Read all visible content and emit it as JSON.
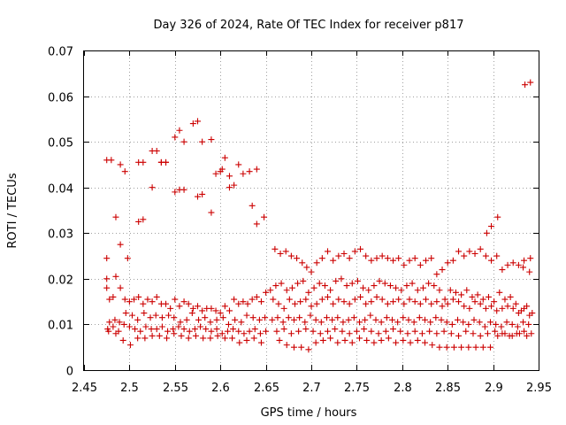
{
  "chart_data": {
    "type": "scatter",
    "title": "Day 326 of 2024, Rate Of TEC Index for receiver p817",
    "xlabel": "GPS time / hours",
    "ylabel": "ROTI / TECUs",
    "xlim": [
      2.45,
      2.95
    ],
    "ylim": [
      0,
      0.07
    ],
    "xticks": [
      "2.45",
      "2.5",
      "2.55",
      "2.6",
      "2.65",
      "2.7",
      "2.75",
      "2.8",
      "2.85",
      "2.9",
      "2.95"
    ],
    "yticks": [
      "0",
      "0.01",
      "0.02",
      "0.03",
      "0.04",
      "0.05",
      "0.06",
      "0.07"
    ],
    "grid": true,
    "marker": "+",
    "color": "#cc0000",
    "series": [
      {
        "name": "p817",
        "x": [
          2.475,
          2.475,
          2.48,
          2.485,
          2.49,
          2.495,
          2.51,
          2.515,
          2.525,
          2.53,
          2.535,
          2.54,
          2.55,
          2.555,
          2.56,
          2.57,
          2.575,
          2.58,
          2.59,
          2.595,
          2.6,
          2.602,
          2.61,
          2.62,
          2.625,
          2.632,
          2.64,
          2.475,
          2.485,
          2.49,
          2.498,
          2.51,
          2.515,
          2.525,
          2.535,
          2.54,
          2.55,
          2.555,
          2.56,
          2.575,
          2.58,
          2.59,
          2.605,
          2.61,
          2.615,
          2.635,
          2.64,
          2.648,
          2.475,
          2.478,
          2.482,
          2.49,
          2.495,
          2.5,
          2.505,
          2.51,
          2.515,
          2.52,
          2.525,
          2.53,
          2.535,
          2.54,
          2.545,
          2.55,
          2.555,
          2.56,
          2.565,
          2.57,
          2.575,
          2.58,
          2.585,
          2.59,
          2.595,
          2.6,
          2.605,
          2.61,
          2.615,
          2.62,
          2.625,
          2.63,
          2.635,
          2.64,
          2.645,
          2.65,
          2.478,
          2.484,
          2.489,
          2.496,
          2.503,
          2.509,
          2.516,
          2.523,
          2.529,
          2.536,
          2.543,
          2.549,
          2.556,
          2.563,
          2.569,
          2.576,
          2.583,
          2.589,
          2.596,
          2.603,
          2.609,
          2.616,
          2.623,
          2.629,
          2.636,
          2.643,
          2.649,
          2.476,
          2.482,
          2.488,
          2.494,
          2.5,
          2.506,
          2.512,
          2.518,
          2.524,
          2.53,
          2.536,
          2.542,
          2.548,
          2.554,
          2.56,
          2.566,
          2.572,
          2.578,
          2.584,
          2.59,
          2.596,
          2.602,
          2.608,
          2.614,
          2.62,
          2.626,
          2.632,
          2.638,
          2.644,
          2.65,
          2.477,
          2.485,
          2.493,
          2.501,
          2.509,
          2.517,
          2.525,
          2.533,
          2.541,
          2.549,
          2.557,
          2.565,
          2.573,
          2.581,
          2.589,
          2.597,
          2.605,
          2.613,
          2.621,
          2.629,
          2.637,
          2.645,
          2.66,
          2.666,
          2.672,
          2.678,
          2.684,
          2.69,
          2.695,
          2.7,
          2.706,
          2.712,
          2.718,
          2.724,
          2.73,
          2.736,
          2.742,
          2.748,
          2.754,
          2.76,
          2.766,
          2.772,
          2.778,
          2.784,
          2.79,
          2.796,
          2.802,
          2.808,
          2.814,
          2.82,
          2.826,
          2.832,
          2.838,
          2.844,
          2.85,
          2.856,
          2.862,
          2.868,
          2.874,
          2.88,
          2.886,
          2.892,
          2.898,
          2.904,
          2.91,
          2.916,
          2.922,
          2.928,
          2.934,
          2.94,
          2.655,
          2.661,
          2.667,
          2.673,
          2.679,
          2.685,
          2.691,
          2.697,
          2.703,
          2.709,
          2.715,
          2.721,
          2.727,
          2.733,
          2.739,
          2.745,
          2.751,
          2.757,
          2.763,
          2.769,
          2.775,
          2.781,
          2.787,
          2.793,
          2.799,
          2.805,
          2.811,
          2.817,
          2.823,
          2.829,
          2.835,
          2.841,
          2.847,
          2.853,
          2.859,
          2.865,
          2.871,
          2.877,
          2.883,
          2.889,
          2.895,
          2.901,
          2.907,
          2.913,
          2.919,
          2.925,
          2.931,
          2.937,
          2.943,
          2.658,
          2.664,
          2.67,
          2.676,
          2.682,
          2.688,
          2.694,
          2.7,
          2.706,
          2.712,
          2.718,
          2.724,
          2.73,
          2.736,
          2.742,
          2.748,
          2.754,
          2.76,
          2.766,
          2.772,
          2.778,
          2.784,
          2.79,
          2.796,
          2.802,
          2.808,
          2.814,
          2.82,
          2.826,
          2.832,
          2.838,
          2.844,
          2.85,
          2.856,
          2.862,
          2.868,
          2.874,
          2.88,
          2.886,
          2.892,
          2.898,
          2.904,
          2.91,
          2.916,
          2.922,
          2.928,
          2.934,
          2.94,
          2.657,
          2.663,
          2.669,
          2.675,
          2.681,
          2.687,
          2.693,
          2.699,
          2.705,
          2.711,
          2.717,
          2.723,
          2.729,
          2.735,
          2.741,
          2.747,
          2.753,
          2.759,
          2.765,
          2.771,
          2.777,
          2.783,
          2.789,
          2.795,
          2.801,
          2.807,
          2.813,
          2.819,
          2.825,
          2.831,
          2.837,
          2.843,
          2.849,
          2.855,
          2.861,
          2.867,
          2.873,
          2.879,
          2.885,
          2.891,
          2.897,
          2.903,
          2.909,
          2.915,
          2.921,
          2.927,
          2.933,
          2.939,
          2.662,
          2.67,
          2.678,
          2.686,
          2.694,
          2.702,
          2.71,
          2.718,
          2.726,
          2.734,
          2.742,
          2.75,
          2.758,
          2.766,
          2.774,
          2.782,
          2.79,
          2.798,
          2.806,
          2.814,
          2.822,
          2.83,
          2.838,
          2.846,
          2.854,
          2.862,
          2.87,
          2.878,
          2.886,
          2.894,
          2.902,
          2.91,
          2.918,
          2.926,
          2.934,
          2.942,
          2.665,
          2.673,
          2.681,
          2.689,
          2.697,
          2.705,
          2.713,
          2.721,
          2.729,
          2.737,
          2.745,
          2.753,
          2.761,
          2.769,
          2.777,
          2.785,
          2.793,
          2.801,
          2.809,
          2.817,
          2.825,
          2.833,
          2.841,
          2.849,
          2.857,
          2.865,
          2.873,
          2.881,
          2.889,
          2.897,
          2.905,
          2.913,
          2.921,
          2.929,
          2.937,
          2.893,
          2.898,
          2.905,
          2.935,
          2.941,
          2.933,
          2.941
        ],
        "y": [
          0.046,
          0.0245,
          0.046,
          0.0335,
          0.045,
          0.0435,
          0.0455,
          0.0455,
          0.048,
          0.048,
          0.0455,
          0.0455,
          0.051,
          0.0525,
          0.05,
          0.054,
          0.0545,
          0.05,
          0.0505,
          0.043,
          0.0435,
          0.044,
          0.04,
          0.045,
          0.043,
          0.0435,
          0.044,
          0.02,
          0.0205,
          0.0275,
          0.0245,
          0.0325,
          0.033,
          0.04,
          0.0455,
          0.0455,
          0.039,
          0.0395,
          0.0395,
          0.038,
          0.0385,
          0.0345,
          0.0465,
          0.0425,
          0.0405,
          0.036,
          0.032,
          0.0335,
          0.018,
          0.0155,
          0.016,
          0.018,
          0.0155,
          0.015,
          0.0155,
          0.016,
          0.0145,
          0.0155,
          0.015,
          0.016,
          0.0145,
          0.0145,
          0.0135,
          0.0155,
          0.014,
          0.015,
          0.0145,
          0.0135,
          0.014,
          0.013,
          0.0135,
          0.0135,
          0.013,
          0.0125,
          0.014,
          0.013,
          0.0155,
          0.0145,
          0.015,
          0.0145,
          0.0155,
          0.016,
          0.015,
          0.017,
          0.0105,
          0.011,
          0.0105,
          0.0125,
          0.012,
          0.011,
          0.0125,
          0.0115,
          0.012,
          0.0115,
          0.012,
          0.0115,
          0.0105,
          0.011,
          0.0125,
          0.011,
          0.0115,
          0.0105,
          0.011,
          0.0115,
          0.01,
          0.011,
          0.0105,
          0.012,
          0.0115,
          0.011,
          0.0115,
          0.009,
          0.0095,
          0.0085,
          0.01,
          0.0095,
          0.009,
          0.0085,
          0.0095,
          0.009,
          0.009,
          0.0095,
          0.0085,
          0.009,
          0.0095,
          0.009,
          0.0085,
          0.009,
          0.0095,
          0.009,
          0.0085,
          0.009,
          0.008,
          0.0085,
          0.009,
          0.0085,
          0.008,
          0.0085,
          0.009,
          0.008,
          0.0085,
          0.0085,
          0.008,
          0.0065,
          0.0055,
          0.007,
          0.007,
          0.0075,
          0.0075,
          0.007,
          0.008,
          0.0075,
          0.007,
          0.0075,
          0.007,
          0.007,
          0.0075,
          0.007,
          0.007,
          0.006,
          0.0065,
          0.007,
          0.006,
          0.0265,
          0.0255,
          0.026,
          0.025,
          0.0245,
          0.0235,
          0.0225,
          0.0215,
          0.0235,
          0.0245,
          0.026,
          0.024,
          0.025,
          0.0255,
          0.0245,
          0.026,
          0.0265,
          0.025,
          0.024,
          0.0245,
          0.025,
          0.0245,
          0.024,
          0.0245,
          0.023,
          0.024,
          0.0245,
          0.023,
          0.024,
          0.0245,
          0.021,
          0.022,
          0.0235,
          0.024,
          0.026,
          0.025,
          0.026,
          0.0255,
          0.0265,
          0.025,
          0.024,
          0.025,
          0.022,
          0.023,
          0.0235,
          0.023,
          0.024,
          0.0215,
          0.0175,
          0.0185,
          0.019,
          0.0175,
          0.018,
          0.019,
          0.0195,
          0.017,
          0.018,
          0.019,
          0.0185,
          0.0175,
          0.0195,
          0.02,
          0.0185,
          0.019,
          0.0195,
          0.018,
          0.0175,
          0.0185,
          0.0195,
          0.019,
          0.0185,
          0.018,
          0.0175,
          0.0185,
          0.019,
          0.0175,
          0.018,
          0.019,
          0.0185,
          0.0175,
          0.0155,
          0.0175,
          0.017,
          0.0165,
          0.0175,
          0.016,
          0.0165,
          0.0155,
          0.016,
          0.015,
          0.017,
          0.0155,
          0.016,
          0.0145,
          0.013,
          0.014,
          0.0125,
          0.0155,
          0.0145,
          0.0135,
          0.0155,
          0.0145,
          0.015,
          0.0155,
          0.014,
          0.0145,
          0.0155,
          0.016,
          0.0145,
          0.0155,
          0.015,
          0.0145,
          0.0155,
          0.016,
          0.0145,
          0.015,
          0.016,
          0.0155,
          0.0145,
          0.015,
          0.0155,
          0.0145,
          0.0155,
          0.015,
          0.0145,
          0.0155,
          0.0145,
          0.015,
          0.014,
          0.0145,
          0.0155,
          0.015,
          0.014,
          0.0135,
          0.015,
          0.0145,
          0.0135,
          0.014,
          0.013,
          0.0135,
          0.014,
          0.0135,
          0.0125,
          0.0135,
          0.012,
          0.011,
          0.0115,
          0.0105,
          0.0115,
          0.011,
          0.0115,
          0.0105,
          0.012,
          0.011,
          0.0105,
          0.0115,
          0.011,
          0.0115,
          0.0105,
          0.011,
          0.0115,
          0.0105,
          0.011,
          0.012,
          0.011,
          0.0105,
          0.0115,
          0.011,
          0.0105,
          0.0115,
          0.011,
          0.0105,
          0.0115,
          0.011,
          0.0105,
          0.0115,
          0.011,
          0.0105,
          0.01,
          0.011,
          0.0105,
          0.01,
          0.011,
          0.0105,
          0.0095,
          0.0105,
          0.01,
          0.0095,
          0.0105,
          0.01,
          0.0095,
          0.0105,
          0.01,
          0.0085,
          0.009,
          0.008,
          0.0085,
          0.009,
          0.0085,
          0.008,
          0.0085,
          0.009,
          0.0085,
          0.008,
          0.0085,
          0.009,
          0.0085,
          0.008,
          0.0085,
          0.009,
          0.0085,
          0.008,
          0.0085,
          0.008,
          0.0085,
          0.008,
          0.0085,
          0.008,
          0.0075,
          0.0085,
          0.008,
          0.0075,
          0.008,
          0.0085,
          0.008,
          0.0075,
          0.008,
          0.0085,
          0.008,
          0.0065,
          0.0055,
          0.005,
          0.005,
          0.0045,
          0.006,
          0.0065,
          0.007,
          0.006,
          0.0065,
          0.006,
          0.007,
          0.0065,
          0.006,
          0.0065,
          0.007,
          0.006,
          0.0065,
          0.006,
          0.0065,
          0.006,
          0.0055,
          0.005,
          0.005,
          0.005,
          0.005,
          0.005,
          0.005,
          0.005,
          0.005,
          0.0075,
          0.008,
          0.0075,
          0.008,
          0.0075,
          0.03,
          0.0315,
          0.0335,
          0.0625,
          0.063,
          0.0225,
          0.0245
        ]
      }
    ]
  }
}
